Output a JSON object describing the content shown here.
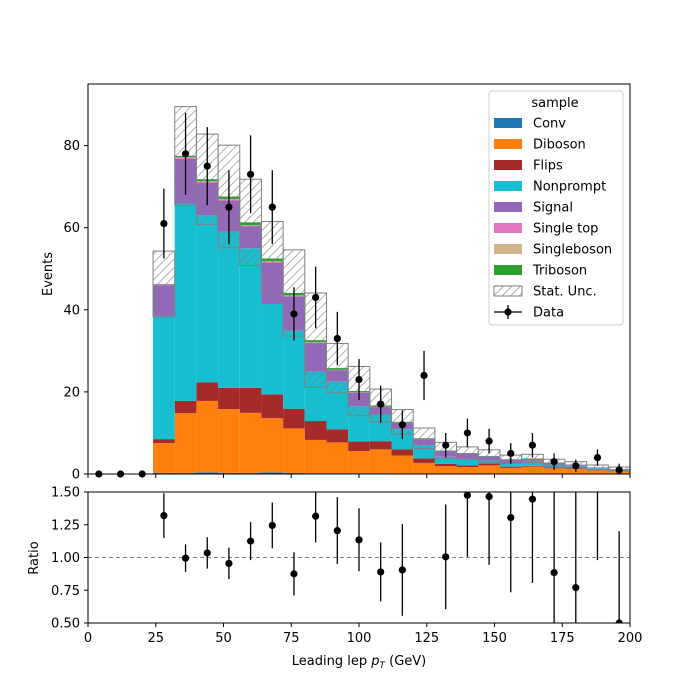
{
  "chart_data": [
    {
      "type": "bar",
      "stacked": true,
      "xlabel": "Leading lep",
      "xlabel_math": "p",
      "xlabel_sub": "T",
      "xlabel_unit": "(GeV)",
      "ylabel": "Events",
      "xlim": [
        0,
        200
      ],
      "ylim": [
        0,
        95
      ],
      "xticks": [
        "0",
        "25",
        "50",
        "75",
        "100",
        "125",
        "150",
        "175",
        "200"
      ],
      "yticks": [
        "0",
        "20",
        "40",
        "60",
        "80"
      ],
      "bin_edges": [
        0,
        8,
        16,
        24,
        32,
        40,
        48,
        56,
        64,
        72,
        80,
        88,
        96,
        104,
        112,
        120,
        128,
        136,
        144,
        152,
        160,
        168,
        176,
        184,
        192,
        200
      ],
      "series": [
        {
          "name": "Conv",
          "color": "#1f77b4",
          "values": [
            0,
            0,
            0,
            0.3,
            0.3,
            0.4,
            0.3,
            0.3,
            0.4,
            0.3,
            0.2,
            0.2,
            0.2,
            0.2,
            0.1,
            0.1,
            0.1,
            0.1,
            0.1,
            0.1,
            0.1,
            0.1,
            0,
            0,
            0
          ]
        },
        {
          "name": "Diboson",
          "color": "#ff7f0e",
          "values": [
            0,
            0,
            0,
            7.2,
            14.5,
            17.4,
            15.5,
            14.6,
            13.2,
            10.8,
            8.1,
            7.5,
            5.4,
            5.8,
            4.4,
            2.6,
            1.8,
            1.6,
            2.0,
            1.4,
            1.7,
            1.3,
            1.2,
            0.9,
            0.7
          ]
        },
        {
          "name": "Flips",
          "color": "#a52a2a",
          "values": [
            0,
            0,
            0,
            1.0,
            3.0,
            4.5,
            5.2,
            6.1,
            5.8,
            4.8,
            4.6,
            3.2,
            2.3,
            2.0,
            1.5,
            1.1,
            0.6,
            0.4,
            0.5,
            0.3,
            0.2,
            0.2,
            0.2,
            0.1,
            0.1
          ]
        },
        {
          "name": "Nonprompt",
          "color": "#17becf",
          "values": [
            0,
            0,
            0,
            30,
            48,
            40.7,
            38,
            34,
            22,
            19,
            12,
            11.6,
            8.6,
            6.5,
            4.9,
            3.2,
            1.7,
            1.6,
            0.7,
            0.8,
            1.2,
            0.7,
            0.6,
            0.4,
            0.2
          ]
        },
        {
          "name": "Signal",
          "color": "#9467bd",
          "values": [
            0,
            0,
            0,
            7.5,
            11,
            7.9,
            7.5,
            5.3,
            10,
            8.3,
            7,
            2.8,
            3.3,
            1.8,
            1.6,
            1.5,
            1.4,
            1.3,
            1.0,
            0.9,
            0.5,
            0.4,
            0.3,
            0.2,
            0.2
          ]
        },
        {
          "name": "Single top",
          "color": "#e377c2",
          "values": [
            0,
            0,
            0,
            0.2,
            0.3,
            0.3,
            0.4,
            0.2,
            0.3,
            0.2,
            0.1,
            0.1,
            0.1,
            0.1,
            0,
            0,
            0,
            0,
            0,
            0,
            0,
            0,
            0,
            0,
            0
          ]
        },
        {
          "name": "Singleboson",
          "color": "#d2b48c",
          "values": [
            0,
            0,
            0,
            0,
            0.1,
            0.1,
            0.1,
            0.1,
            0.1,
            0.1,
            0.1,
            0,
            0,
            0,
            0,
            0,
            0,
            0,
            0,
            0,
            0,
            0,
            0,
            0,
            0
          ]
        },
        {
          "name": "Triboson",
          "color": "#2ca02c",
          "values": [
            0,
            0,
            0,
            0.1,
            0.3,
            0.5,
            0.6,
            0.7,
            0.7,
            0.6,
            0.5,
            0.4,
            0.3,
            0.3,
            0.2,
            0.2,
            0.1,
            0.1,
            0.1,
            0.1,
            0.1,
            0.1,
            0,
            0,
            0
          ]
        }
      ],
      "stat_unc": [
        0,
        0,
        0,
        8,
        12,
        11,
        12.5,
        10.5,
        9,
        10.5,
        11.5,
        6,
        6,
        4,
        3,
        2.5,
        2,
        1.5,
        1.5,
        1,
        1,
        0.8,
        0.7,
        0.6,
        0.5
      ],
      "stat_unc_label": "Stat. Unc.",
      "data": {
        "name": "Data",
        "x": [
          4,
          12,
          20,
          28,
          36,
          44,
          52,
          60,
          68,
          76,
          84,
          92,
          100,
          108,
          116,
          124,
          132,
          140,
          148,
          156,
          164,
          172,
          180,
          188,
          196
        ],
        "y": [
          0,
          0,
          0,
          61,
          78,
          75,
          65,
          73,
          65,
          39,
          43,
          33,
          23,
          17,
          12,
          24,
          7,
          10,
          8,
          5,
          7,
          3,
          2,
          4,
          1
        ],
        "err": [
          0,
          0,
          0,
          8.5,
          10,
          9.5,
          9,
          9.5,
          9,
          6.5,
          7.5,
          6.5,
          5,
          4.5,
          3.5,
          6,
          3,
          3.5,
          3,
          2.5,
          3,
          2,
          1.5,
          2,
          1.5
        ]
      },
      "legend": {
        "title": "sample",
        "position": "top-right"
      }
    },
    {
      "type": "scatter",
      "ylabel": "Ratio",
      "xlim": [
        0,
        200
      ],
      "ylim": [
        0.5,
        1.5
      ],
      "yticks": [
        "0.50",
        "0.75",
        "1.00",
        "1.25",
        "1.50"
      ],
      "reference_line": 1.0,
      "x": [
        28,
        36,
        44,
        52,
        60,
        68,
        76,
        84,
        92,
        100,
        108,
        116,
        132,
        140,
        148,
        156,
        164,
        172,
        180,
        188,
        196
      ],
      "y": [
        1.32,
        0.995,
        1.035,
        0.955,
        1.125,
        1.245,
        0.875,
        1.315,
        1.205,
        1.135,
        0.89,
        0.905,
        1.005,
        1.475,
        1.465,
        1.305,
        1.445,
        0.885,
        0.77,
        1.6,
        0.5
      ],
      "err": [
        0.17,
        0.105,
        0.12,
        0.12,
        0.145,
        0.175,
        0.165,
        0.2,
        0.255,
        0.24,
        0.225,
        0.35,
        0.4,
        0.47,
        0.52,
        0.57,
        0.64,
        0.88,
        0.75,
        0.62,
        0.7
      ]
    }
  ]
}
